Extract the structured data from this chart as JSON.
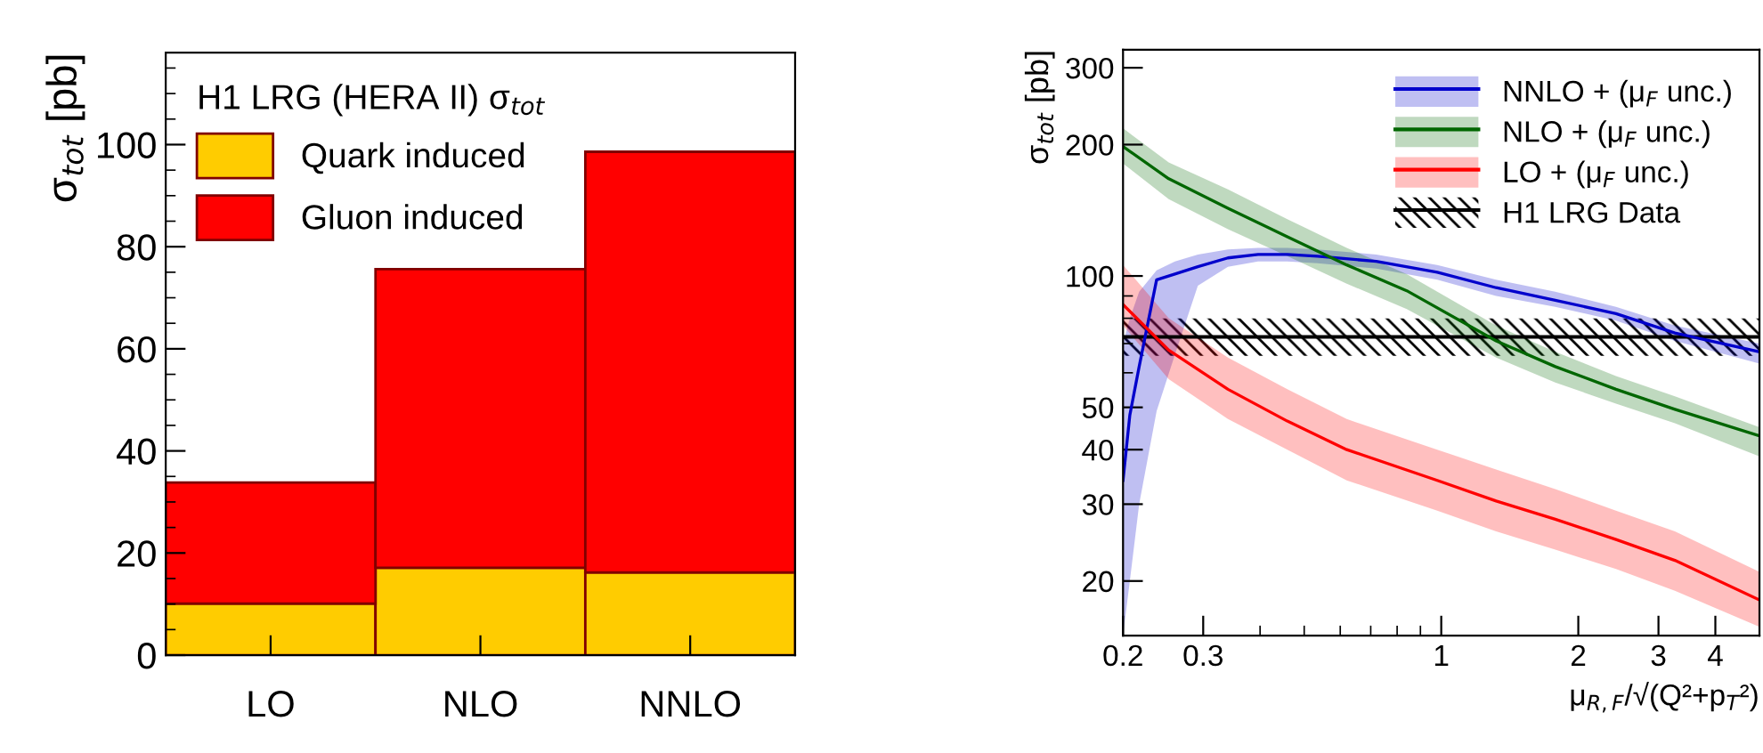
{
  "chart_data": [
    {
      "type": "bar",
      "stacked": true,
      "ylabel": "σ$_{tot}$ [pb]",
      "legend_title": "H1 LRG (HERA II) σ$_{tot}$",
      "legend": "top left",
      "categories": [
        "LO",
        "NLO",
        "NNLO"
      ],
      "series": [
        {
          "name": "Quark induced",
          "color": "#ffcc00",
          "values": [
            10.1,
            17.1,
            16.2
          ]
        },
        {
          "name": "Gluon induced",
          "color": "#ff0000",
          "values": [
            23.7,
            58.5,
            82.4
          ]
        }
      ],
      "ylim": [
        0,
        118
      ],
      "yticks": [
        0,
        {
          "value": 5,
          "label": null
        },
        {
          "value": 10,
          "label": null
        },
        {
          "value": 15,
          "label": null
        },
        20,
        {
          "value": 25,
          "label": null
        },
        {
          "value": 30,
          "label": null
        },
        {
          "value": 35,
          "label": null
        },
        40,
        {
          "value": 45,
          "label": null
        },
        {
          "value": 50,
          "label": null
        },
        {
          "value": 55,
          "label": null
        },
        60,
        {
          "value": 65,
          "label": null
        },
        {
          "value": 70,
          "label": null
        },
        {
          "value": 75,
          "label": null
        },
        80,
        {
          "value": 85,
          "label": null
        },
        {
          "value": 90,
          "label": null
        },
        {
          "value": 95,
          "label": null
        },
        100,
        {
          "value": 105,
          "label": null
        },
        {
          "value": 110,
          "label": null
        },
        {
          "value": 115,
          "label": null
        }
      ],
      "grid": false
    },
    {
      "type": "line",
      "log": "xy",
      "xlabel": "μ$_{R,F}$/√(Q²+p$_{T}$²)",
      "ylabel": "σ$_{tot}$ [pb]",
      "legend": "top right",
      "series": [
        {
          "name": "NNLO + (μ$_{F}$ unc.)",
          "color": "#0000cc",
          "x": [
            0.2,
            0.207,
            0.217,
            0.237,
            0.26,
            0.292,
            0.34,
            0.396,
            0.459,
            0.535,
            0.72,
            0.98,
            1.32,
            1.78,
            2.42,
            3.26,
            5
          ],
          "values": [
            34,
            48,
            62,
            98,
            101,
            105,
            110,
            112,
            112,
            111,
            108,
            102,
            94,
            88,
            82,
            74,
            67
          ],
          "upper": [
            70,
            80,
            92,
            103,
            108,
            112,
            115,
            116,
            116,
            115,
            112,
            106,
            98,
            92,
            85,
            77,
            70
          ],
          "lower": [
            15,
            20,
            30,
            49,
            66,
            95,
            105,
            108,
            108,
            107,
            104,
            98,
            90,
            85,
            79,
            71,
            63
          ]
        },
        {
          "name": "NLO + (μ$_{F}$ unc.)",
          "color": "#006600",
          "x": [
            0.2,
            0.252,
            0.34,
            0.459,
            0.62,
            0.84,
            1.32,
            1.78,
            2.42,
            3.26,
            5
          ],
          "values": [
            198,
            167,
            143,
            123,
            106,
            92.5,
            71,
            62,
            55,
            49.5,
            43
          ],
          "upper": [
            218,
            182,
            158,
            135,
            116,
            101,
            77,
            67,
            59,
            53,
            45
          ],
          "lower": [
            181,
            150,
            128,
            111,
            96,
            84,
            65,
            57,
            51,
            46,
            38.6
          ]
        },
        {
          "name": "LO + (μ$_{F}$ unc.)",
          "color": "#ff0000",
          "x": [
            0.2,
            0.252,
            0.34,
            0.459,
            0.62,
            0.98,
            1.32,
            1.78,
            2.42,
            3.26,
            5
          ],
          "values": [
            86,
            67.6,
            55,
            46.5,
            40,
            34,
            30.5,
            27.7,
            24.9,
            22.3,
            18.1
          ],
          "upper": [
            106,
            80,
            65,
            55,
            47,
            40,
            36,
            32.5,
            29,
            26,
            21
          ],
          "lower": [
            77,
            58,
            47,
            40,
            34,
            29,
            26,
            23.6,
            21.3,
            19,
            15.7
          ]
        }
      ],
      "ref_lines": [
        {
          "axis": "y",
          "value": 72.5,
          "color": "#000000"
        }
      ],
      "bands": [
        {
          "axis": "y",
          "from": 65.6,
          "to": 79.9,
          "label": "H1 LRG Data",
          "color": "#000000"
        }
      ],
      "xlim": [
        0.2,
        5
      ],
      "xticks": [
        0.2,
        0.3,
        {
          "value": 0.4,
          "label": null
        },
        {
          "value": 0.5,
          "label": null
        },
        {
          "value": 0.6,
          "label": null
        },
        {
          "value": 0.7,
          "label": null
        },
        {
          "value": 0.8,
          "label": null
        },
        {
          "value": 0.9,
          "label": null
        },
        1,
        2,
        3,
        4
      ],
      "ylim": [
        15,
        330
      ],
      "yticks": [
        20,
        30,
        40,
        50,
        {
          "value": 60,
          "label": null
        },
        {
          "value": 70,
          "label": null
        },
        {
          "value": 80,
          "label": null
        },
        {
          "value": 90,
          "label": null
        },
        100,
        200,
        300
      ],
      "grid": false
    }
  ]
}
